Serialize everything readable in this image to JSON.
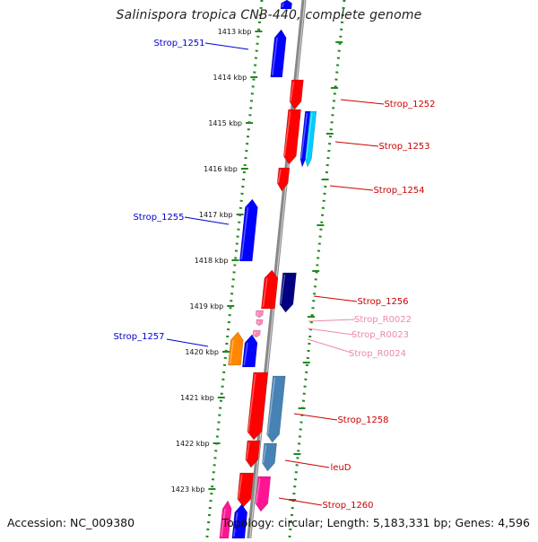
{
  "title": "Salinispora tropica CNB-440, complete genome",
  "footer": {
    "accession": "Accession: NC_009380",
    "topology": "Topology: circular; Length: 5,183,331 bp; Genes: 4,596"
  },
  "colors": {
    "left_label": "#0000cc",
    "right_label": "#cc0000",
    "rna_label": "#ee88aa",
    "dot_track": "#228822",
    "backbone": "#888888"
  },
  "kbp_labels": [
    "1413 kbp",
    "1414 kbp",
    "1415 kbp",
    "1416 kbp",
    "1417 kbp",
    "1418 kbp",
    "1419 kbp",
    "1420 kbp",
    "1421 kbp",
    "1422 kbp",
    "1423 kbp"
  ],
  "gene_labels": [
    {
      "text": "Strop_1251",
      "side": "left",
      "kind": "gene"
    },
    {
      "text": "Strop_1252",
      "side": "right",
      "kind": "gene"
    },
    {
      "text": "Strop_1253",
      "side": "right",
      "kind": "gene"
    },
    {
      "text": "Strop_1254",
      "side": "right",
      "kind": "gene"
    },
    {
      "text": "Strop_1255",
      "side": "left",
      "kind": "gene"
    },
    {
      "text": "Strop_1256",
      "side": "right",
      "kind": "gene"
    },
    {
      "text": "Strop_R0022",
      "side": "right",
      "kind": "rna"
    },
    {
      "text": "Strop_R0023",
      "side": "right",
      "kind": "rna"
    },
    {
      "text": "Strop_R0024",
      "side": "right",
      "kind": "rna"
    },
    {
      "text": "Strop_1257",
      "side": "left",
      "kind": "gene"
    },
    {
      "text": "Strop_1258",
      "side": "right",
      "kind": "gene"
    },
    {
      "text": "leuD",
      "side": "right",
      "kind": "gene"
    },
    {
      "text": "Strop_1260",
      "side": "right",
      "kind": "gene"
    }
  ],
  "features": [
    {
      "color": "#0000ff",
      "dir": "up"
    },
    {
      "color": "#0000ff",
      "dir": "up"
    },
    {
      "color": "#ff0000",
      "dir": "down"
    },
    {
      "color": "#ff0000",
      "dir": "down"
    },
    {
      "color": "#0000ff",
      "dir": "down"
    },
    {
      "color": "#00ccff",
      "dir": "down"
    },
    {
      "color": "#ff0000",
      "dir": "down"
    },
    {
      "color": "#0000ff",
      "dir": "up"
    },
    {
      "color": "#ff0000",
      "dir": "up"
    },
    {
      "color": "#000080",
      "dir": "down"
    },
    {
      "color": "#ff88bb",
      "dir": "down"
    },
    {
      "color": "#ff88bb",
      "dir": "down"
    },
    {
      "color": "#ff88bb",
      "dir": "down"
    },
    {
      "color": "#ff8800",
      "dir": "up"
    },
    {
      "color": "#0000ff",
      "dir": "up"
    },
    {
      "color": "#ff0000",
      "dir": "down"
    },
    {
      "color": "#4682b4",
      "dir": "down"
    },
    {
      "color": "#ff0000",
      "dir": "down"
    },
    {
      "color": "#4682b4",
      "dir": "down"
    },
    {
      "color": "#ff0000",
      "dir": "down"
    },
    {
      "color": "#ff1493",
      "dir": "down"
    },
    {
      "color": "#ff1493",
      "dir": "up"
    },
    {
      "color": "#0000ff",
      "dir": "up"
    }
  ]
}
